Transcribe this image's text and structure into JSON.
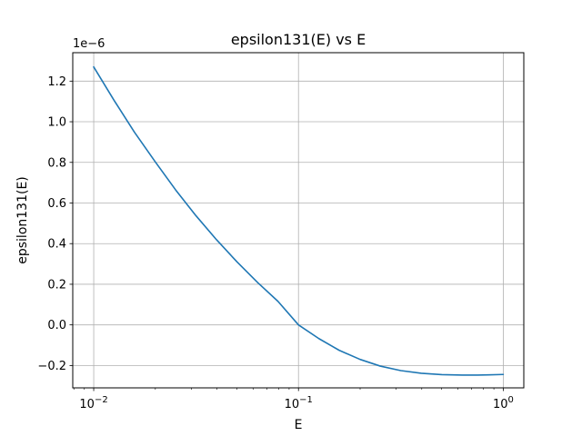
{
  "chart_data": {
    "type": "line",
    "title": "epsilon131(E) vs E",
    "xlabel": "E",
    "ylabel": "epsilon131(E)",
    "xscale": "log",
    "xlim": [
      0.0079,
      1.26
    ],
    "ylim": [
      -0.31,
      1.34
    ],
    "y_offset_label": "1e−6",
    "grid": true,
    "legend": "none",
    "x_ticks": [
      {
        "value": 0.01,
        "base": "10",
        "exp": "−2"
      },
      {
        "value": 0.1,
        "base": "10",
        "exp": "−1"
      },
      {
        "value": 1,
        "base": "10",
        "exp": "0"
      }
    ],
    "y_ticks": [
      {
        "value": -0.2,
        "label": "−0.2"
      },
      {
        "value": 0.0,
        "label": "0.0"
      },
      {
        "value": 0.2,
        "label": "0.2"
      },
      {
        "value": 0.4,
        "label": "0.4"
      },
      {
        "value": 0.6,
        "label": "0.6"
      },
      {
        "value": 0.8,
        "label": "0.8"
      },
      {
        "value": 1.0,
        "label": "1.0"
      },
      {
        "value": 1.2,
        "label": "1.2"
      }
    ],
    "series": [
      {
        "color": "#1f77b4",
        "x": [
          0.01,
          0.0126,
          0.0158,
          0.02,
          0.0251,
          0.0316,
          0.0398,
          0.0501,
          0.0631,
          0.0794,
          0.1,
          0.126,
          0.158,
          0.2,
          0.251,
          0.316,
          0.398,
          0.501,
          0.631,
          0.75,
          0.85,
          1.0
        ],
        "y": [
          1.27,
          1.104,
          0.949,
          0.802,
          0.665,
          0.537,
          0.419,
          0.31,
          0.209,
          0.116,
          0.0,
          -0.068,
          -0.125,
          -0.17,
          -0.203,
          -0.225,
          -0.238,
          -0.245,
          -0.247,
          -0.247,
          -0.246,
          -0.244
        ]
      }
    ]
  }
}
